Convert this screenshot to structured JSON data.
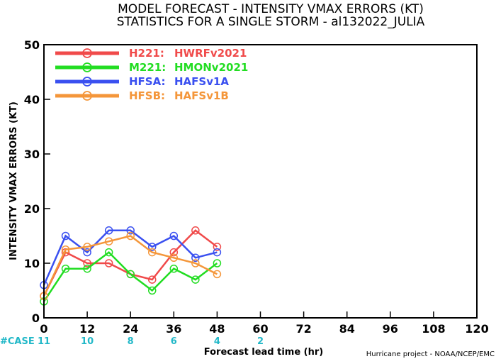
{
  "titles": {
    "line1": "MODEL FORECAST - INTENSITY VMAX ERRORS (KT)",
    "line2": "STATISTICS FOR A SINGLE STORM - al132022_JULIA"
  },
  "credit": "Hurricane project - NOAA/NCEP/EMC",
  "cases": {
    "label": "#CASE",
    "entries": [
      {
        "x": 0,
        "count": "11"
      },
      {
        "x": 12,
        "count": "10"
      },
      {
        "x": 24,
        "count": "8"
      },
      {
        "x": 36,
        "count": "6"
      },
      {
        "x": 48,
        "count": "4"
      },
      {
        "x": 60,
        "count": "2"
      }
    ]
  },
  "chart_data": {
    "type": "line",
    "xlabel": "Forecast lead time (hr)",
    "ylabel": "INTENSITY VMAX ERRORS (KT)",
    "xlim": [
      0,
      120
    ],
    "ylim": [
      0,
      50
    ],
    "xticks": [
      "0",
      "12",
      "24",
      "36",
      "48",
      "60",
      "72",
      "84",
      "96",
      "108",
      "120"
    ],
    "yticks": [
      "0",
      "10",
      "20",
      "30",
      "40",
      "50"
    ],
    "grid": false,
    "legend_position": "top-left",
    "x": [
      0,
      6,
      12,
      18,
      24,
      30,
      36,
      42,
      48
    ],
    "series": [
      {
        "name": "H221:",
        "label": "HWRFv2021",
        "color": "#f04a4a",
        "values": [
          4,
          12,
          10,
          10,
          8,
          7,
          12,
          16,
          13
        ]
      },
      {
        "name": "M221:",
        "label": "HMONv2021",
        "color": "#22dd22",
        "values": [
          3,
          9,
          9,
          12,
          8,
          5,
          9,
          7,
          10
        ]
      },
      {
        "name": "HFSA:",
        "label": "HAFSv1A",
        "color": "#3a50f0",
        "values": [
          6,
          15,
          12,
          16,
          16,
          13,
          15,
          11,
          12
        ]
      },
      {
        "name": "HFSB:",
        "label": "HAFSv1B",
        "color": "#f4963a",
        "values": [
          4,
          12.5,
          13,
          14,
          15,
          12,
          11,
          10,
          8
        ]
      }
    ]
  }
}
